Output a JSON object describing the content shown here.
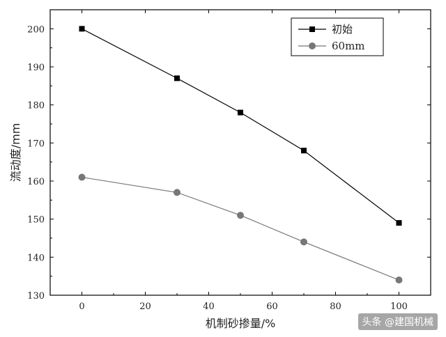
{
  "chart_data": {
    "type": "line",
    "title": "",
    "xlabel": "机制砂掺量/%",
    "ylabel": "流动度/mm",
    "xlim": [
      -10,
      110
    ],
    "ylim": [
      130,
      205
    ],
    "xticks": [
      0,
      20,
      40,
      60,
      80,
      100
    ],
    "yticks": [
      130,
      140,
      150,
      160,
      170,
      180,
      190,
      200
    ],
    "grid": false,
    "legend_position": "top-right",
    "series": [
      {
        "name": "初始",
        "marker": "square",
        "color": "#000000",
        "x": [
          0,
          30,
          50,
          70,
          100
        ],
        "y": [
          200,
          187,
          178,
          168,
          149
        ]
      },
      {
        "name": "60mm",
        "marker": "circle",
        "color": "#777777",
        "x": [
          0,
          30,
          50,
          70,
          100
        ],
        "y": [
          161,
          157,
          151,
          144,
          134
        ]
      }
    ]
  },
  "watermark": "头条 @建国机械"
}
